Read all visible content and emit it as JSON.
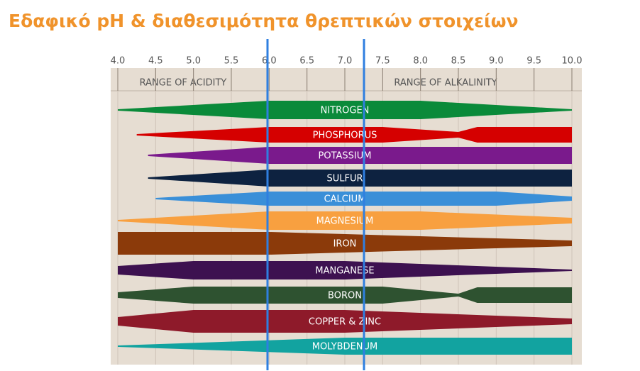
{
  "header": {
    "title": "Εδαφικό pH & διαθεσιμότητα θρεπτικών στοιχείων"
  },
  "axis": {
    "ticks": [
      "4.0",
      "4.5",
      "5.0",
      "5.5",
      "6.0",
      "6.5",
      "7.0",
      "7.5",
      "8.0",
      "8.5",
      "9.0",
      "9.5",
      "10.0"
    ]
  },
  "ranges": {
    "acidity": "RANGE OF ACIDITY",
    "alkalinity": "RANGE OF ALKALINITY"
  },
  "nutrients": [
    "NITROGEN",
    "PHOSPHORUS",
    "POTASSIUM",
    "SULFUR",
    "CALCIUM",
    "MAGNESIUM",
    "IRON",
    "MANGANESE",
    "BORON",
    "COPPER & ZINC",
    "MOLYBDENUM"
  ]
}
